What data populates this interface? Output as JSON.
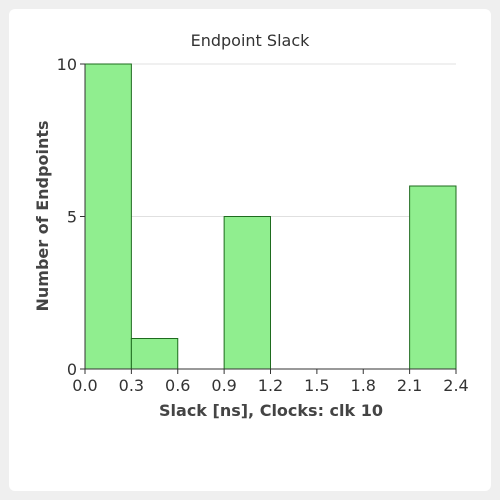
{
  "chart_data": {
    "type": "bar",
    "title": "Endpoint Slack",
    "xlabel": "Slack [ns], Clocks: clk 10",
    "ylabel": "Number of Endpoints",
    "bins": [
      {
        "x0": 0.0,
        "x1": 0.3,
        "count": 10
      },
      {
        "x0": 0.3,
        "x1": 0.6,
        "count": 1
      },
      {
        "x0": 0.6,
        "x1": 0.9,
        "count": 0
      },
      {
        "x0": 0.9,
        "x1": 1.2,
        "count": 5
      },
      {
        "x0": 1.2,
        "x1": 1.5,
        "count": 0
      },
      {
        "x0": 1.5,
        "x1": 1.8,
        "count": 0
      },
      {
        "x0": 1.8,
        "x1": 2.1,
        "count": 0
      },
      {
        "x0": 2.1,
        "x1": 2.4,
        "count": 6
      }
    ],
    "xticks": [
      "0.0",
      "0.3",
      "0.6",
      "0.9",
      "1.2",
      "1.5",
      "1.8",
      "2.1",
      "2.4"
    ],
    "yticks": [
      "0",
      "5",
      "10"
    ],
    "xlim": [
      0.0,
      2.4
    ],
    "ylim": [
      0,
      10
    ],
    "grid": true,
    "colors": {
      "bar_fill": "#90ee8f",
      "bar_stroke": "#1e6b1e",
      "grid": "#e0e0e0",
      "axis": "#333333"
    }
  }
}
